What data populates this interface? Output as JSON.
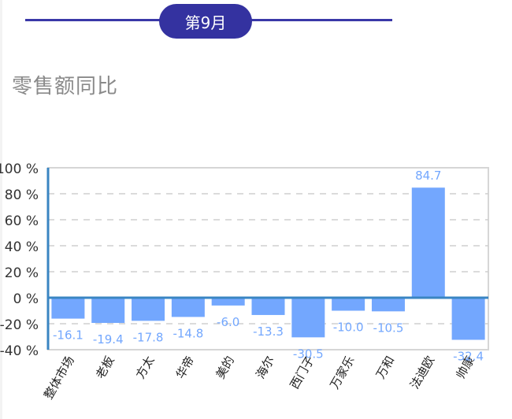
{
  "header": {
    "month_label": "第9月",
    "accent_color": "#3432a0"
  },
  "page_title": "零售额同比",
  "chart_data": {
    "type": "bar",
    "title": "零售额同比",
    "xlabel": "",
    "ylabel": "",
    "categories": [
      "整体市场",
      "老板",
      "方太",
      "华帝",
      "美的",
      "海尔",
      "西门子",
      "万家乐",
      "万和",
      "法迪欧",
      "帅康"
    ],
    "values": [
      -16.1,
      -19.4,
      -17.8,
      -14.8,
      -6.0,
      -13.3,
      -30.5,
      -10.0,
      -10.5,
      84.7,
      -32.4
    ],
    "value_labels": [
      "-16.1",
      "-19.4",
      "-17.8",
      "-14.8",
      "-6.0",
      "-13.3",
      "-30.5",
      "-10.0",
      "-10.5",
      "84.7",
      "-32.4"
    ],
    "ylim": [
      -40,
      100
    ],
    "yticks": [
      100,
      80,
      60,
      40,
      20,
      0,
      -20,
      -40
    ],
    "ytick_labels": [
      "100 %",
      "80 %",
      "60 %",
      "40 %",
      "20 %",
      "0 %",
      "-20 %",
      "-40 %"
    ],
    "grid": "horizontal dashed",
    "legend": "none",
    "bar_color": "#73a7fe",
    "label_color": "#73a7fe",
    "axis_color": "#3a85c2"
  }
}
